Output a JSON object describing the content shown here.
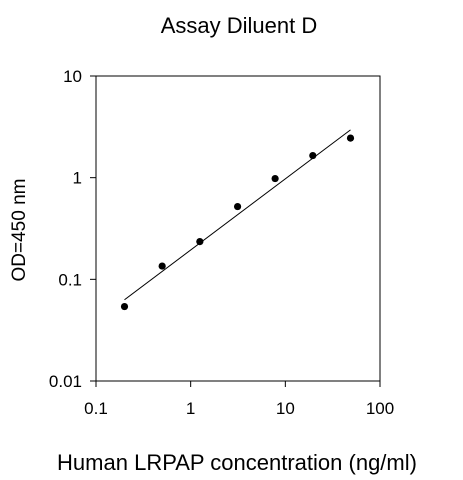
{
  "chart_data": {
    "type": "scatter",
    "title": "Assay Diluent D",
    "xlabel": "Human LRPAP concentration (ng/ml)",
    "ylabel": "OD=450 nm",
    "xscale": "log",
    "yscale": "log",
    "xlim": [
      0.1,
      100
    ],
    "ylim": [
      0.01,
      10
    ],
    "xticks": [
      "0.1",
      "1",
      "10",
      "100"
    ],
    "yticks": [
      "0.01",
      "0.1",
      "1",
      "10"
    ],
    "grid": false,
    "legend": "none",
    "series": [
      {
        "x": [
          0.2,
          0.5,
          1.25,
          3.13,
          7.8,
          19.5,
          48.8
        ],
        "y": [
          0.054,
          0.135,
          0.235,
          0.52,
          0.98,
          1.65,
          2.45
        ]
      }
    ],
    "fit_line": {
      "x": [
        0.2,
        48.8
      ],
      "y": [
        0.063,
        2.95
      ]
    },
    "colors": {
      "marker": "#000000",
      "line": "#000000",
      "axes": "#000000"
    }
  }
}
